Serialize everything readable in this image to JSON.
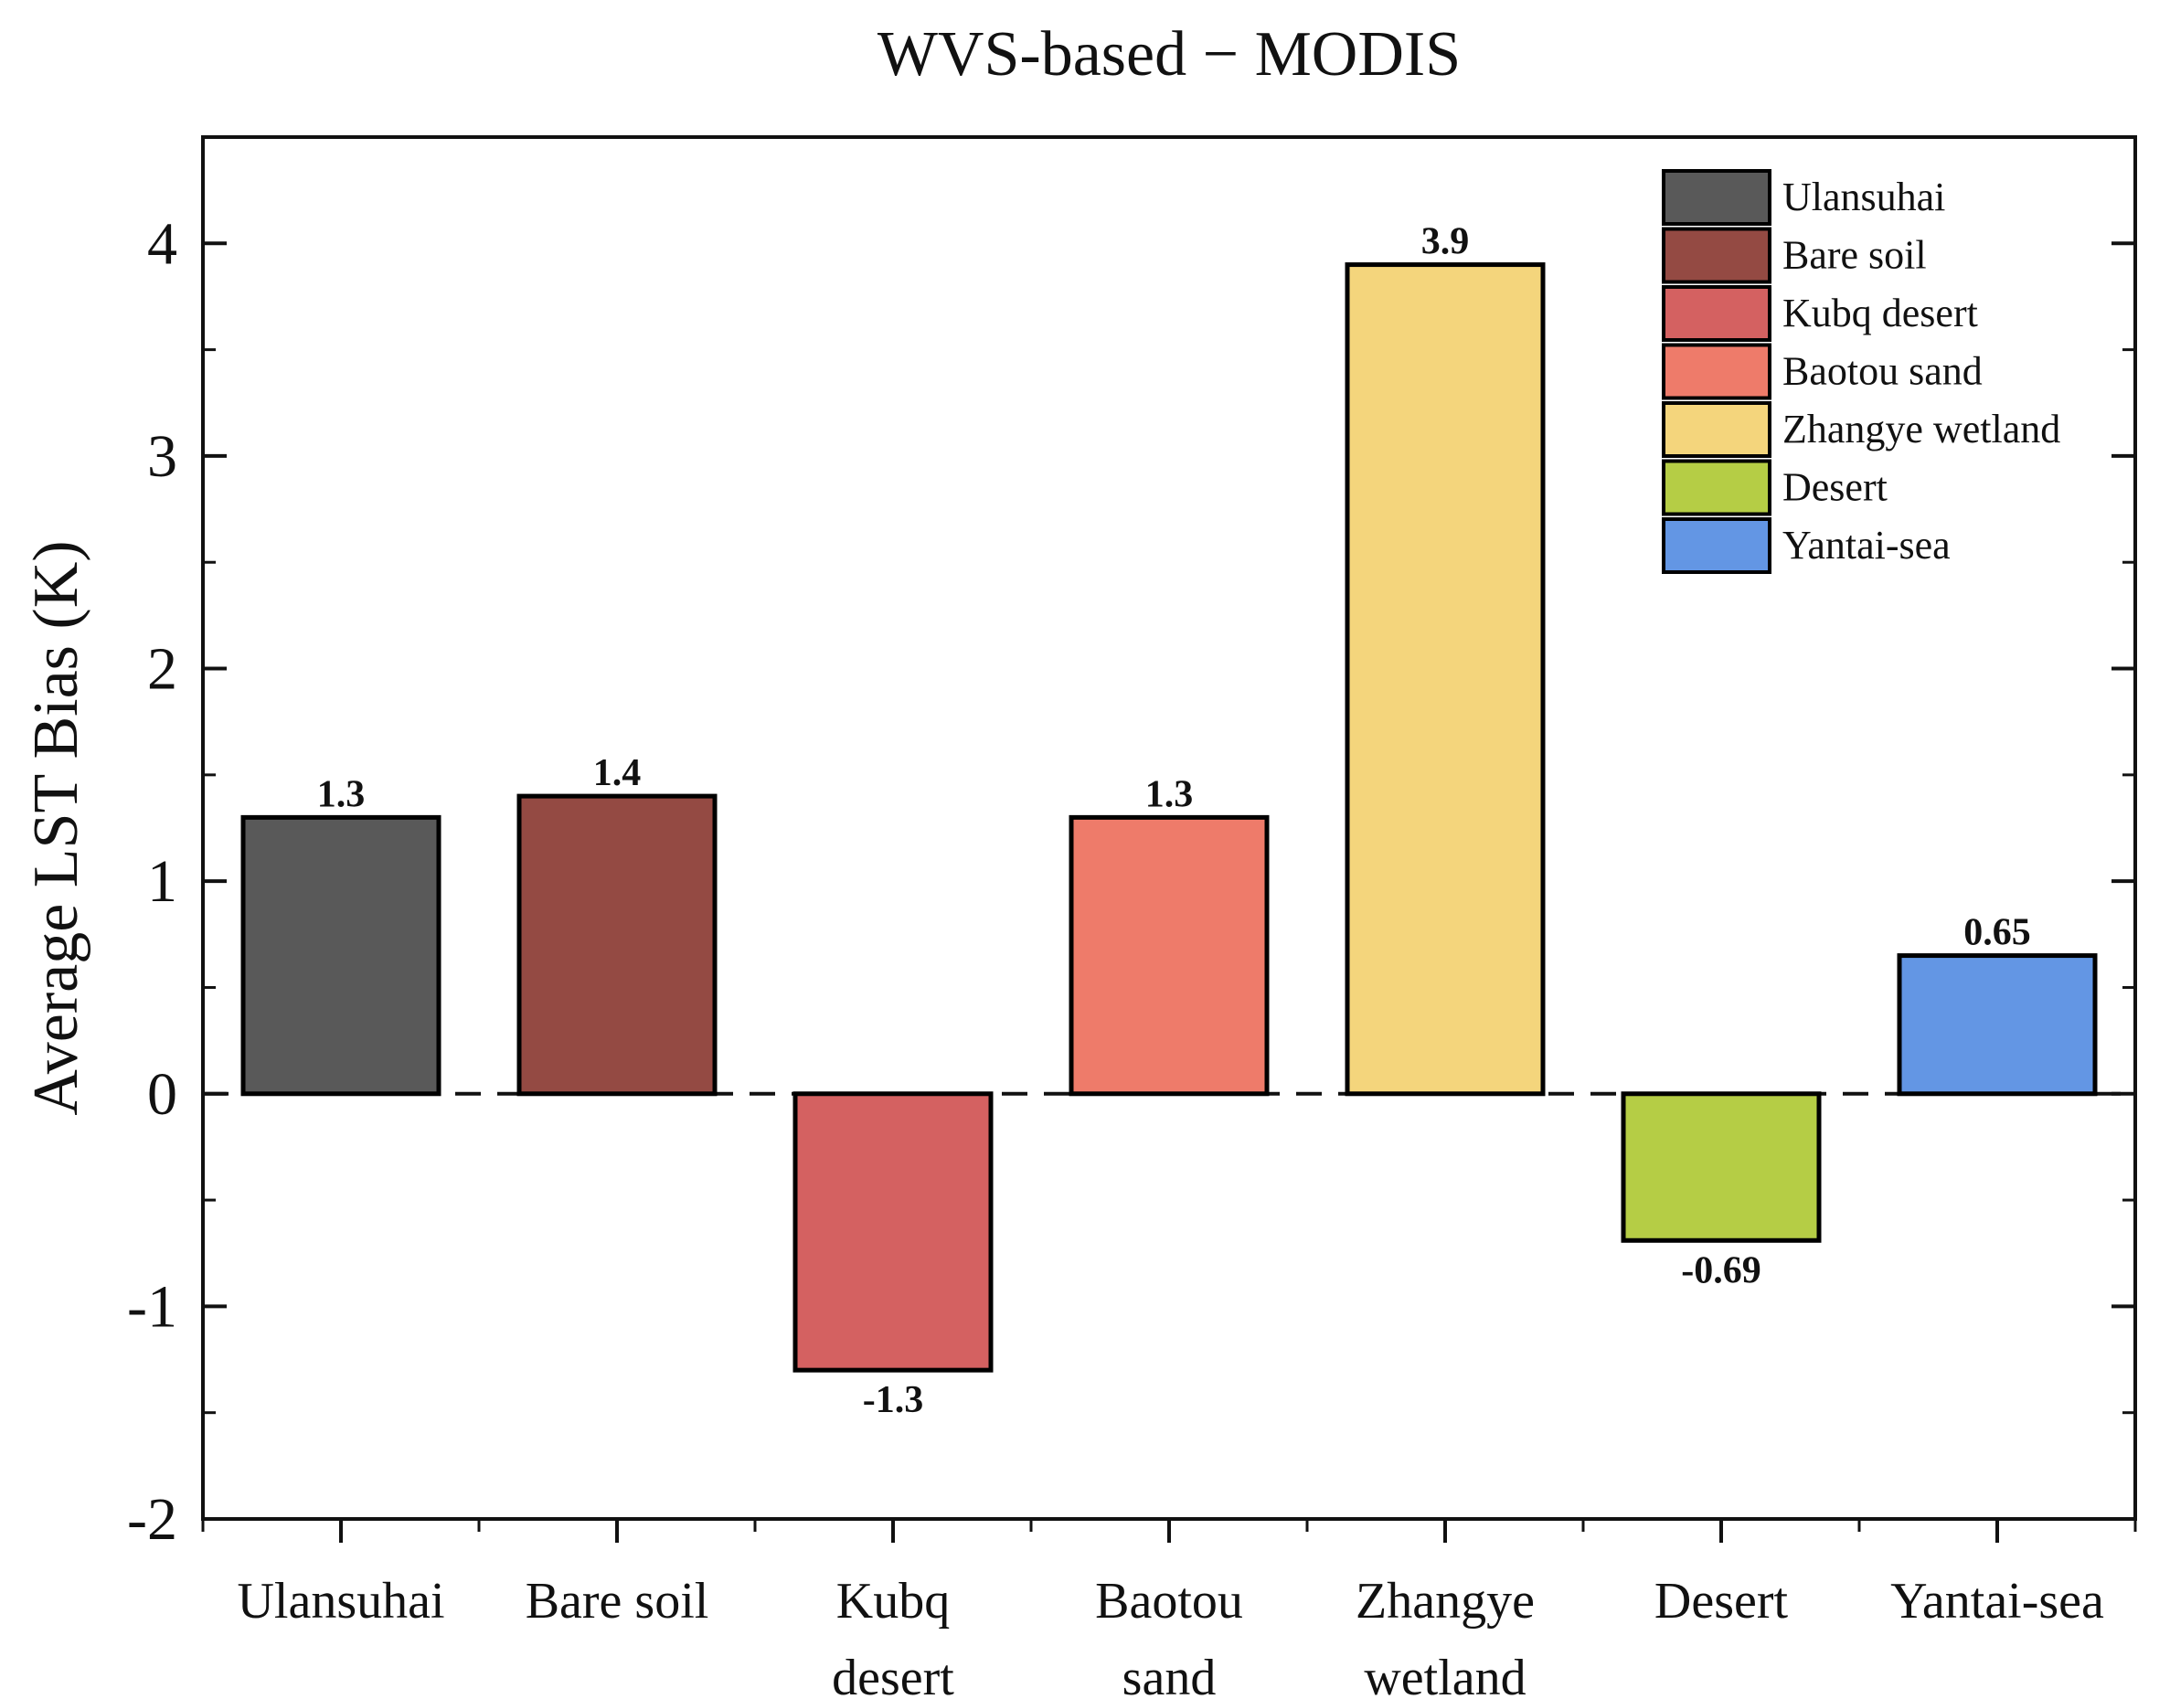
{
  "chart_data": {
    "type": "bar",
    "title": "WVS-based − MODIS",
    "xlabel": "",
    "ylabel": "Average LST Bias (K)",
    "ylim": [
      -2,
      4.5
    ],
    "yticks": [
      "-2",
      "-1",
      "0",
      "1",
      "2",
      "3",
      "4"
    ],
    "ytick_values": [
      -2,
      -1,
      0,
      1,
      2,
      3,
      4
    ],
    "categories": [
      [
        "Ulansuhai"
      ],
      [
        "Bare soil"
      ],
      [
        "Kubq",
        "desert"
      ],
      [
        "Baotou",
        "sand"
      ],
      [
        "Zhangye",
        "wetland"
      ],
      [
        "Desert"
      ],
      [
        "Yantai-sea"
      ]
    ],
    "values": [
      1.3,
      1.4,
      -1.3,
      1.3,
      3.9,
      -0.69,
      0.65
    ],
    "data_labels": [
      "1.3",
      "1.4",
      "-1.3",
      "1.3",
      "3.9",
      "-0.69",
      "0.65"
    ],
    "colors": [
      "#595959",
      "#944a43",
      "#d46161",
      "#ee7b6a",
      "#f4d57c",
      "#b5cd45",
      "#6396e4"
    ],
    "legend": {
      "position": "top-right",
      "entries": [
        "Ulansuhai",
        "Bare soil",
        "Kubq desert",
        "Baotou sand",
        "Zhangye wetland",
        "Desert",
        "Yantai-sea"
      ]
    },
    "zero_line": "dashed",
    "grid": false
  }
}
